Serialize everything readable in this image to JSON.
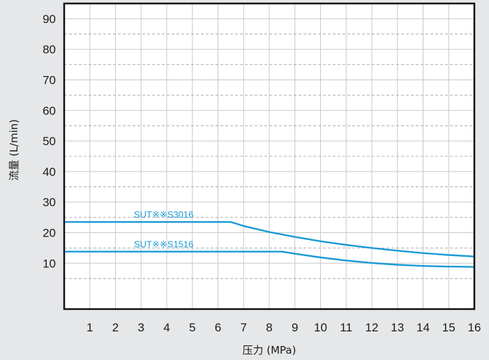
{
  "chart_data": {
    "type": "line",
    "xlabel": "压力 (MPa)",
    "ylabel": "流量 (L/min)",
    "xlim": [
      0,
      16
    ],
    "ylim": [
      -5,
      95
    ],
    "x_ticks": [
      1,
      2,
      3,
      4,
      5,
      6,
      7,
      8,
      9,
      10,
      11,
      12,
      13,
      14,
      15,
      16
    ],
    "y_ticks": [
      10,
      20,
      30,
      40,
      50,
      60,
      70,
      80,
      90
    ],
    "grid": true,
    "series": [
      {
        "name": "SUT※※S3016",
        "color": "#1a9ad6",
        "x": [
          0,
          6.5,
          7,
          8,
          9,
          10,
          11,
          12,
          13,
          14,
          15,
          16
        ],
        "y": [
          23.5,
          23.5,
          22.2,
          20.2,
          18.6,
          17.2,
          16,
          15,
          14.1,
          13.3,
          12.7,
          12.2
        ]
      },
      {
        "name": "SUT※※S1516",
        "color": "#1a9ad6",
        "x": [
          0,
          8.5,
          9,
          10,
          11,
          12,
          13,
          14,
          15,
          16
        ],
        "y": [
          13.8,
          13.8,
          13.1,
          11.9,
          10.9,
          10.1,
          9.5,
          9.1,
          8.9,
          8.8
        ]
      }
    ]
  }
}
